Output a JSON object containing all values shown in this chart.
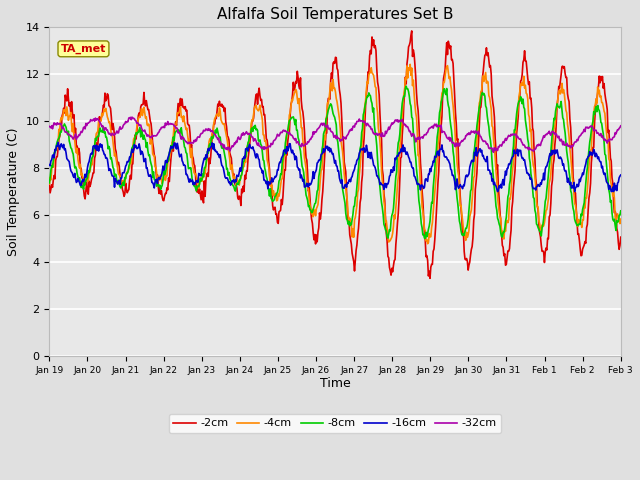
{
  "title": "Alfalfa Soil Temperatures Set B",
  "xlabel": "Time",
  "ylabel": "Soil Temperature (C)",
  "ylim": [
    0,
    14
  ],
  "yticks": [
    0,
    2,
    4,
    6,
    8,
    10,
    12,
    14
  ],
  "annotation_label": "TA_met",
  "annotation_color": "#cc0000",
  "annotation_bg": "#ffff99",
  "legend_entries": [
    "-2cm",
    "-4cm",
    "-8cm",
    "-16cm",
    "-32cm"
  ],
  "line_colors": [
    "#dd0000",
    "#ff8800",
    "#00cc00",
    "#0000cc",
    "#aa00aa"
  ],
  "line_width": 1.2,
  "x_tick_labels": [
    "Jan 19",
    "Jan 20",
    "Jan 21",
    "Jan 22",
    "Jan 23",
    "Jan 24",
    "Jan 25",
    "Jan 26",
    "Jan 27",
    "Jan 28",
    "Jan 29",
    "Jan 30",
    "Jan 31",
    "Feb 1",
    "Feb 2",
    "Feb 3"
  ],
  "background_color": "#e0e0e0",
  "plot_bg": "#e8e8e8",
  "grid_color": "#ffffff",
  "title_fontsize": 11,
  "axis_label_fontsize": 9
}
